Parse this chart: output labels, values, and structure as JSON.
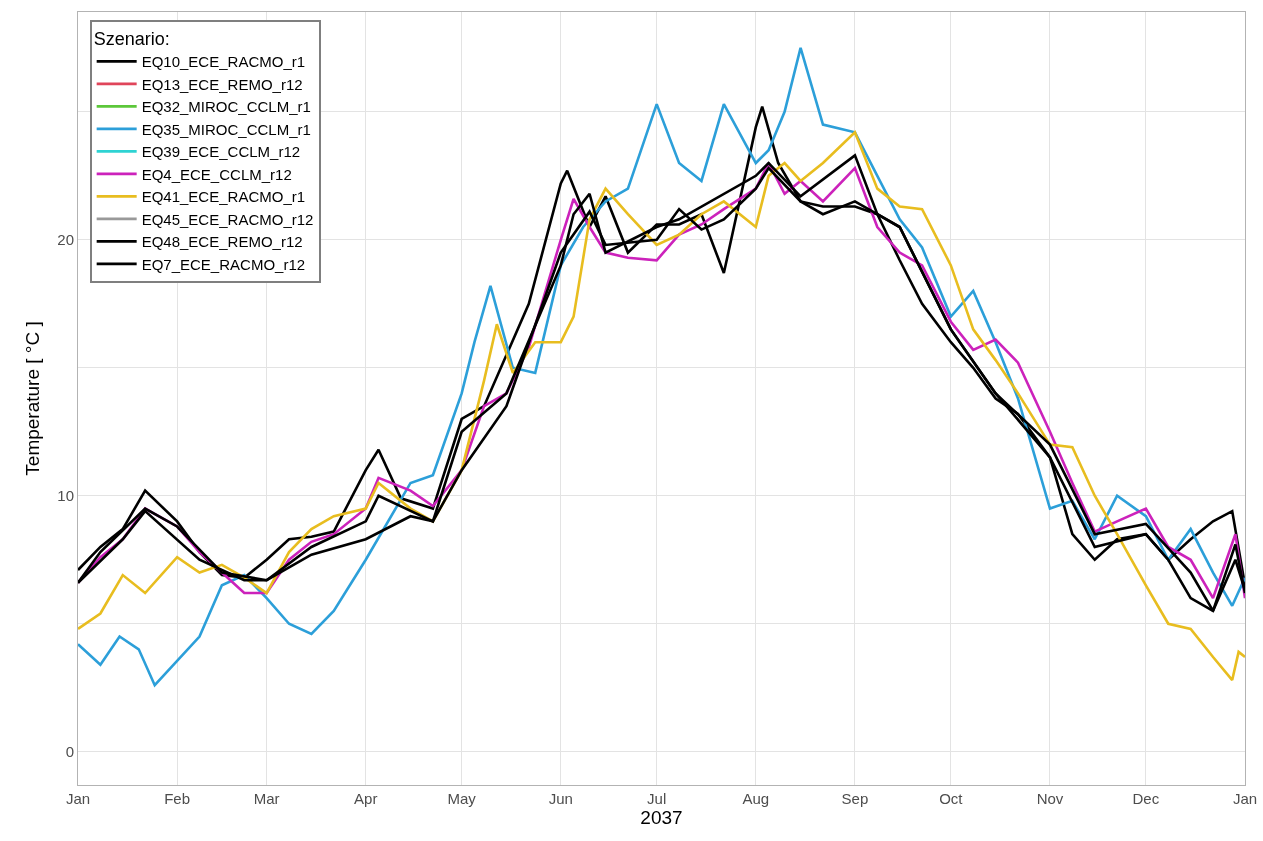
{
  "chart_data": {
    "type": "line",
    "xlabel": "2037",
    "ylabel": "Temperature [ °C ]",
    "legend_title": "Szenario:",
    "legend": "top left",
    "grid": true,
    "line_style": "solid",
    "xlim": [
      "2037-01-01",
      "2038-01-01"
    ],
    "xticks": [
      {
        "value": "2037-01-01",
        "label": "Jan"
      },
      {
        "value": "2037-02-01",
        "label": "Feb"
      },
      {
        "value": "2037-03-01",
        "label": "Mar"
      },
      {
        "value": "2037-04-01",
        "label": "Apr"
      },
      {
        "value": "2037-05-01",
        "label": "May"
      },
      {
        "value": "2037-06-01",
        "label": "Jun"
      },
      {
        "value": "2037-07-01",
        "label": "Jul"
      },
      {
        "value": "2037-08-01",
        "label": "Aug"
      },
      {
        "value": "2037-09-01",
        "label": "Sep"
      },
      {
        "value": "2037-10-01",
        "label": "Oct"
      },
      {
        "value": "2037-11-01",
        "label": "Nov"
      },
      {
        "value": "2037-12-01",
        "label": "Dec"
      },
      {
        "value": "2038-01-01",
        "label": "Jan"
      }
    ],
    "ylim": [
      -1.3,
      28.9
    ],
    "yticks": [
      0,
      {
        "value": 5,
        "label": null
      },
      10,
      {
        "value": 15,
        "label": null
      },
      20,
      {
        "value": 25,
        "label": null
      }
    ],
    "series": [
      {
        "name": "EQ10_ECE_RACMO_r1",
        "color": "#000000",
        "x": [
          "2037-01-01",
          "2037-01-08",
          "2037-01-15",
          "2037-01-22",
          "2037-02-01",
          "2037-02-08",
          "2037-02-15",
          "2037-02-22",
          "2037-03-01",
          "2037-03-08",
          "2037-03-15",
          "2037-03-22",
          "2037-04-01",
          "2037-04-05",
          "2037-04-12",
          "2037-04-22",
          "2037-05-01",
          "2037-05-08",
          "2037-05-15",
          "2037-05-22",
          "2037-06-01",
          "2037-06-03",
          "2037-06-10",
          "2037-06-15",
          "2037-06-22",
          "2037-07-01",
          "2037-07-08",
          "2037-07-15",
          "2037-07-22",
          "2037-08-01",
          "2037-08-03",
          "2037-08-08",
          "2037-08-15",
          "2037-08-22",
          "2037-09-01",
          "2037-09-08",
          "2037-09-15",
          "2037-09-22",
          "2037-10-01",
          "2037-10-08",
          "2037-10-15",
          "2037-10-22",
          "2037-11-01",
          "2037-11-08",
          "2037-11-15",
          "2037-11-22",
          "2037-12-01",
          "2037-12-08",
          "2037-12-15",
          "2037-12-22",
          "2037-12-28",
          "2038-01-01"
        ],
        "values": [
          7.1,
          8.0,
          8.7,
          10.2,
          9.0,
          7.8,
          6.9,
          6.8,
          7.5,
          8.3,
          8.4,
          8.6,
          11.0,
          11.8,
          9.9,
          9.5,
          13,
          13.5,
          15.5,
          17.5,
          22.2,
          22.7,
          20.5,
          21.7,
          19.5,
          20.6,
          20.6,
          21,
          18.7,
          24.4,
          25.2,
          23,
          21.5,
          21.3,
          21.3,
          21.0,
          19.2,
          17.5,
          16.0,
          15,
          13.8,
          13.2,
          11.5,
          8.5,
          7.5,
          8.3,
          8.5,
          7.5,
          8.3,
          9.0,
          9.4,
          6.5
        ]
      },
      {
        "name": "EQ13_ECE_REMO_r12",
        "color": "#e0455a",
        "values": [
          null
        ]
      },
      {
        "name": "EQ32_MIROC_CCLM_r1",
        "color": "#5cc73a",
        "values": [
          null
        ]
      },
      {
        "name": "EQ35_MIROC_CCLM_r1",
        "color": "#2c9fd9",
        "x": [
          "2037-01-01",
          "2037-01-08",
          "2037-01-14",
          "2037-01-20",
          "2037-01-25",
          "2037-02-08",
          "2037-02-15",
          "2037-02-22",
          "2037-03-01",
          "2037-03-08",
          "2037-03-15",
          "2037-03-22",
          "2037-04-01",
          "2037-04-15",
          "2037-04-22",
          "2037-05-01",
          "2037-05-05",
          "2037-05-10",
          "2037-05-17",
          "2037-05-24",
          "2037-06-01",
          "2037-06-08",
          "2037-06-15",
          "2037-06-22",
          "2037-07-01",
          "2037-07-08",
          "2037-07-15",
          "2037-07-22",
          "2037-08-01",
          "2037-08-05",
          "2037-08-10",
          "2037-08-15",
          "2037-08-22",
          "2037-09-01",
          "2037-09-08",
          "2037-09-15",
          "2037-09-22",
          "2037-10-01",
          "2037-10-08",
          "2037-10-15",
          "2037-10-22",
          "2037-11-01",
          "2037-11-08",
          "2037-11-15",
          "2037-11-22",
          "2037-12-01",
          "2037-12-08",
          "2037-12-15",
          "2037-12-22",
          "2037-12-28",
          "2038-01-01"
        ],
        "values": [
          4.2,
          3.4,
          4.5,
          4.0,
          2.6,
          4.5,
          6.5,
          6.9,
          6.0,
          5.0,
          4.6,
          5.5,
          7.5,
          10.5,
          10.8,
          14,
          16,
          18.2,
          15,
          14.8,
          19,
          20.5,
          21.5,
          22,
          25.3,
          23,
          22.3,
          25.3,
          23,
          23.5,
          25,
          27.5,
          24.5,
          24.2,
          22.5,
          20.8,
          19.7,
          17,
          18,
          16,
          13.8,
          9.5,
          9.8,
          8.3,
          10,
          9.2,
          7.5,
          8.7,
          7,
          5.7,
          6.8
        ]
      },
      {
        "name": "EQ39_ECE_CCLM_r12",
        "color": "#2ed3d3",
        "values": [
          null
        ]
      },
      {
        "name": "EQ4_ECE_CCLM_r12",
        "color": "#cc22bb",
        "x": [
          "2037-01-01",
          "2037-01-08",
          "2037-01-15",
          "2037-01-22",
          "2037-02-01",
          "2037-02-08",
          "2037-02-15",
          "2037-02-22",
          "2037-03-01",
          "2037-03-08",
          "2037-03-15",
          "2037-03-22",
          "2037-04-01",
          "2037-04-05",
          "2037-04-15",
          "2037-04-22",
          "2037-05-01",
          "2037-05-08",
          "2037-05-15",
          "2037-05-22",
          "2037-06-01",
          "2037-06-05",
          "2037-06-10",
          "2037-06-15",
          "2037-06-22",
          "2037-07-01",
          "2037-07-08",
          "2037-07-15",
          "2037-07-22",
          "2037-08-01",
          "2037-08-05",
          "2037-08-10",
          "2037-08-15",
          "2037-08-22",
          "2037-09-01",
          "2037-09-08",
          "2037-09-15",
          "2037-09-22",
          "2037-10-01",
          "2037-10-08",
          "2037-10-15",
          "2037-10-22",
          "2037-11-01",
          "2037-11-08",
          "2037-11-15",
          "2037-11-22",
          "2037-12-01",
          "2037-12-08",
          "2037-12-15",
          "2037-12-22",
          "2037-12-29",
          "2038-01-01"
        ],
        "values": [
          6.6,
          7.6,
          8.3,
          9.5,
          8.8,
          7.8,
          7,
          6.2,
          6.2,
          7.5,
          8.2,
          8.5,
          9.5,
          10.7,
          10.2,
          9.6,
          11,
          13.5,
          14,
          15.8,
          20,
          21.6,
          20.5,
          19.5,
          19.3,
          19.2,
          20.2,
          20.6,
          21.2,
          22.0,
          23,
          21.8,
          22.3,
          21.5,
          22.8,
          20.5,
          19.5,
          19.0,
          16.8,
          15.7,
          16.1,
          15.2,
          12.5,
          10.5,
          8.6,
          9.0,
          9.5,
          8,
          7.5,
          6.0,
          8.5,
          6.0
        ]
      },
      {
        "name": "EQ41_ECE_RACMO_r1",
        "color": "#e8bd1f",
        "x": [
          "2037-01-01",
          "2037-01-08",
          "2037-01-15",
          "2037-01-22",
          "2037-02-01",
          "2037-02-08",
          "2037-02-15",
          "2037-02-22",
          "2037-03-01",
          "2037-03-08",
          "2037-03-15",
          "2037-03-22",
          "2037-04-01",
          "2037-04-05",
          "2037-04-15",
          "2037-04-22",
          "2037-05-01",
          "2037-05-08",
          "2037-05-12",
          "2037-05-17",
          "2037-05-24",
          "2037-06-01",
          "2037-06-05",
          "2037-06-10",
          "2037-06-15",
          "2037-06-22",
          "2037-07-01",
          "2037-07-08",
          "2037-07-15",
          "2037-07-22",
          "2037-08-01",
          "2037-08-05",
          "2037-08-10",
          "2037-08-15",
          "2037-08-22",
          "2037-09-01",
          "2037-09-08",
          "2037-09-15",
          "2037-09-22",
          "2037-10-01",
          "2037-10-08",
          "2037-10-15",
          "2037-10-22",
          "2037-11-01",
          "2037-11-08",
          "2037-11-15",
          "2037-11-22",
          "2037-12-01",
          "2037-12-08",
          "2037-12-15",
          "2037-12-22",
          "2037-12-28",
          "2037-12-30",
          "2038-01-01"
        ],
        "values": [
          4.8,
          5.4,
          6.9,
          6.2,
          7.6,
          7.0,
          7.3,
          6.8,
          6.2,
          7.8,
          8.7,
          9.2,
          9.5,
          10.5,
          9.5,
          9,
          11,
          14.5,
          16.7,
          14.8,
          16,
          16,
          17,
          20.8,
          22,
          21,
          19.8,
          20.2,
          21,
          21.5,
          20.5,
          22.5,
          23,
          22.3,
          23,
          24.2,
          22,
          21.3,
          21.2,
          19,
          16.5,
          15.3,
          14,
          12,
          11.9,
          10,
          8.5,
          6.5,
          5,
          4.8,
          3.7,
          2.8,
          3.9,
          3.7
        ]
      },
      {
        "name": "EQ45_ECE_RACMO_r12",
        "color": "#999999",
        "values": [
          null
        ]
      },
      {
        "name": "EQ48_ECE_REMO_r12",
        "color": "#000000",
        "x": [
          "2037-01-01",
          "2037-01-08",
          "2037-01-22",
          "2037-02-01",
          "2037-02-15",
          "2037-03-01",
          "2037-03-15",
          "2037-04-01",
          "2037-04-05",
          "2037-04-22",
          "2037-05-01",
          "2037-05-15",
          "2037-06-01",
          "2037-06-05",
          "2037-06-10",
          "2037-06-15",
          "2037-07-01",
          "2037-07-08",
          "2037-08-01",
          "2037-08-05",
          "2037-08-15",
          "2037-09-01",
          "2037-09-08",
          "2037-09-15",
          "2037-10-01",
          "2037-10-15",
          "2037-11-01",
          "2037-11-15",
          "2037-12-01",
          "2037-12-15",
          "2037-12-22",
          "2037-12-29",
          "2038-01-01"
        ],
        "values": [
          6.6,
          7.8,
          9.5,
          8.8,
          7,
          6.7,
          8,
          9.0,
          10.0,
          9.0,
          12.5,
          14,
          19,
          21.0,
          21.8,
          19.5,
          20.5,
          20.8,
          22.5,
          23,
          21.7,
          23.3,
          21,
          20.5,
          16.5,
          14,
          12,
          8.5,
          8.9,
          7,
          5.5,
          8.1,
          6.2
        ]
      },
      {
        "name": "EQ7_ECE_RACMO_r12",
        "color": "#000000",
        "x": [
          "2037-01-01",
          "2037-01-15",
          "2037-01-22",
          "2037-02-08",
          "2037-02-22",
          "2037-03-01",
          "2037-03-15",
          "2037-04-01",
          "2037-04-15",
          "2037-04-22",
          "2037-05-01",
          "2037-05-15",
          "2037-06-01",
          "2037-06-10",
          "2037-06-15",
          "2037-07-01",
          "2037-07-08",
          "2037-07-15",
          "2037-07-22",
          "2037-08-01",
          "2037-08-05",
          "2037-08-15",
          "2037-08-22",
          "2037-09-01",
          "2037-09-15",
          "2037-10-01",
          "2037-10-15",
          "2037-11-01",
          "2037-11-15",
          "2037-12-01",
          "2037-12-08",
          "2037-12-15",
          "2037-12-22",
          "2037-12-29",
          "2038-01-01"
        ],
        "values": [
          6.6,
          8.3,
          9.4,
          7.5,
          6.7,
          6.7,
          7.7,
          8.3,
          9.2,
          9,
          11,
          13.5,
          19.5,
          21.1,
          19.8,
          20.0,
          21.2,
          20.4,
          20.8,
          22.0,
          22.8,
          21.5,
          21.0,
          21.5,
          20.5,
          16.5,
          14,
          11.5,
          8,
          8.5,
          7.5,
          6,
          5.5,
          7.5,
          6.3
        ]
      }
    ]
  }
}
